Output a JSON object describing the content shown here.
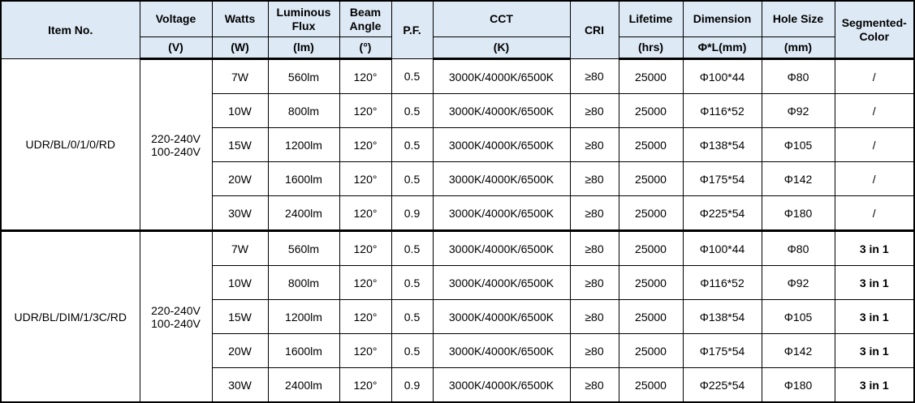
{
  "header": {
    "item_no": "Item No.",
    "voltage": "Voltage",
    "voltage_unit": "(V)",
    "watts": "Watts",
    "watts_unit": "(W)",
    "flux": "Luminous Flux",
    "flux_unit": "(lm)",
    "beam": "Beam Angle",
    "beam_unit": "(°)",
    "pf": "P.F.",
    "cct": "CCT",
    "cct_unit": "(K)",
    "cri": "CRI",
    "lifetime": "Lifetime",
    "lifetime_unit": "(hrs)",
    "dimension": "Dimension",
    "dimension_unit": "Φ*L(mm)",
    "hole": "Hole Size",
    "hole_unit": "(mm)",
    "segmented": "Segmented-Color"
  },
  "groups": [
    {
      "item": "UDR/BL/0/1/0/RD",
      "voltage": "220-240V 100-240V",
      "rows": [
        [
          "7W",
          "560lm",
          "120°",
          "0.5",
          "3000K/4000K/6500K",
          "≥80",
          "25000",
          "Φ100*44",
          "Φ80",
          "/"
        ],
        [
          "10W",
          "800lm",
          "120°",
          "0.5",
          "3000K/4000K/6500K",
          "≥80",
          "25000",
          "Φ116*52",
          "Φ92",
          "/"
        ],
        [
          "15W",
          "1200lm",
          "120°",
          "0.5",
          "3000K/4000K/6500K",
          "≥80",
          "25000",
          "Φ138*54",
          "Φ105",
          "/"
        ],
        [
          "20W",
          "1600lm",
          "120°",
          "0.5",
          "3000K/4000K/6500K",
          "≥80",
          "25000",
          "Φ175*54",
          "Φ142",
          "/"
        ],
        [
          "30W",
          "2400lm",
          "120°",
          "0.9",
          "3000K/4000K/6500K",
          "≥80",
          "25000",
          "Φ225*54",
          "Φ180",
          "/"
        ]
      ]
    },
    {
      "item": "UDR/BL/DIM/1/3C/RD",
      "voltage": "220-240V 100-240V",
      "rows": [
        [
          "7W",
          "560lm",
          "120°",
          "0.5",
          "3000K/4000K/6500K",
          "≥80",
          "25000",
          "Φ100*44",
          "Φ80",
          "3 in 1"
        ],
        [
          "10W",
          "800lm",
          "120°",
          "0.5",
          "3000K/4000K/6500K",
          "≥80",
          "25000",
          "Φ116*52",
          "Φ92",
          "3 in 1"
        ],
        [
          "15W",
          "1200lm",
          "120°",
          "0.5",
          "3000K/4000K/6500K",
          "≥80",
          "25000",
          "Φ138*54",
          "Φ105",
          "3 in 1"
        ],
        [
          "20W",
          "1600lm",
          "120°",
          "0.5",
          "3000K/4000K/6500K",
          "≥80",
          "25000",
          "Φ175*54",
          "Φ142",
          "3 in 1"
        ],
        [
          "30W",
          "2400lm",
          "120°",
          "0.9",
          "3000K/4000K/6500K",
          "≥80",
          "25000",
          "Φ225*54",
          "Φ180",
          "3 in 1"
        ]
      ]
    }
  ],
  "colors": {
    "header_bg": "#dde9f5"
  }
}
